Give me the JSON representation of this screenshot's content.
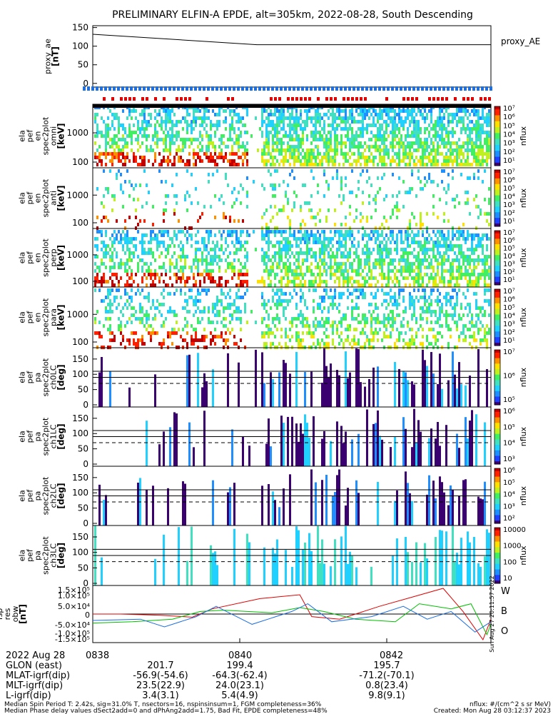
{
  "title": "PRELIMINARY ELFIN-A EPDE, alt=305km, 2022-08-28, South Descending",
  "colors": {
    "blue": "#1e6fe0",
    "red": "#e00000",
    "green": "#00c000"
  },
  "panels": {
    "proxy": {
      "ylabel": [
        "proxy_ae",
        "[nT]"
      ],
      "legend": "proxy_AE",
      "ticks": [
        "150",
        "100",
        "50",
        "0"
      ],
      "tick_values": [
        150,
        100,
        50,
        0
      ]
    },
    "spec": [
      {
        "ylabel": [
          "ela",
          "pef",
          "en",
          "spec2plot",
          "omni",
          "[keV]"
        ],
        "ticks": [
          "1000",
          "100"
        ],
        "cbar": [
          "10⁷",
          "10⁶",
          "10⁵",
          "10⁴",
          "10³",
          "10²",
          "10¹"
        ],
        "clabel": "nflux",
        "density": 0.55,
        "seed": 3
      },
      {
        "ylabel": [
          "ela",
          "pef",
          "en",
          "spec2plot",
          "anti",
          "[keV]"
        ],
        "ticks": [
          "1000",
          "100"
        ],
        "cbar": [
          "10⁷",
          "10⁶",
          "10⁵",
          "10⁴",
          "10³",
          "10²",
          "10¹"
        ],
        "clabel": "nflux",
        "density": 0.12,
        "seed": 11
      },
      {
        "ylabel": [
          "ela",
          "pef",
          "en",
          "spec2plot",
          "perp",
          "[keV]"
        ],
        "ticks": [
          "1000",
          "100"
        ],
        "cbar": [
          "10⁷",
          "10⁶",
          "10⁵",
          "10⁴",
          "10³",
          "10²",
          "10¹"
        ],
        "clabel": "nflux",
        "density": 0.5,
        "seed": 17
      },
      {
        "ylabel": [
          "ela",
          "pef",
          "en",
          "spec2plot",
          "para",
          "[keV]"
        ],
        "ticks": [
          "1000",
          "100"
        ],
        "cbar": [
          "10⁷",
          "10⁶",
          "10⁵",
          "10⁴",
          "10³",
          "10²",
          "10¹"
        ],
        "clabel": "nflux",
        "density": 0.35,
        "seed": 23
      }
    ],
    "pa": [
      {
        "ylabel": [
          "ela",
          "pef",
          "pa",
          "spec2plot",
          "ch0LC",
          "[deg]"
        ],
        "ticks": [
          "150",
          "100",
          "50",
          "0"
        ],
        "cbar": [
          "10⁷",
          "10⁶",
          "10⁵"
        ],
        "clabel": "nflux",
        "seed": 31
      },
      {
        "ylabel": [
          "ela",
          "pef",
          "pa",
          "spec2plot",
          "ch1LC",
          "[deg]"
        ],
        "ticks": [
          "150",
          "100",
          "50",
          "0"
        ],
        "cbar": [
          "10⁶",
          "10⁵",
          "10⁴",
          "10³"
        ],
        "clabel": "nflux",
        "seed": 37
      },
      {
        "ylabel": [
          "ela",
          "pef",
          "pa",
          "spec2plot",
          "ch2LC",
          "[deg]"
        ],
        "ticks": [
          "150",
          "100",
          "50",
          "0"
        ],
        "cbar": [
          "10⁶",
          "10⁵",
          "10⁴",
          "10³",
          "10²"
        ],
        "clabel": "nflux",
        "seed": 41
      },
      {
        "ylabel": [
          "ela",
          "pef",
          "pa",
          "spec2plot",
          "ch3LC",
          "[deg]"
        ],
        "ticks": [
          "150",
          "100",
          "50",
          "0"
        ],
        "cbar": [
          "10000",
          "1000",
          "100",
          "10"
        ],
        "clabel": "nflux",
        "seed": 47
      }
    ],
    "field": {
      "ylabel": [
        "ela",
        "fsp",
        "res",
        "obw",
        "[nT]"
      ],
      "ticks": [
        "1.5×10⁵",
        "1.0×10⁵",
        "5.0×10⁴",
        "0",
        "-5.0×10⁴",
        "-1.0×10⁵",
        "-1.5×10⁵"
      ],
      "legend": [
        "W",
        "B",
        "O"
      ],
      "side_text": "Sun Aug 27 20:11:57 2022"
    }
  },
  "time_axis": {
    "date": "2022 Aug 28",
    "times": [
      "0838",
      "0840",
      "0842"
    ],
    "rows": [
      {
        "label": "GLON (east)",
        "values": [
          "201.7",
          "199.4",
          "195.7"
        ]
      },
      {
        "label": "MLAT-igrf(dip)",
        "values": [
          "-56.9(-54.6)",
          "-64.3(-62.4)",
          "-71.2(-70.1)"
        ]
      },
      {
        "label": "MLT-igrf(dip)",
        "values": [
          "23.5(22.9)",
          "24.0(23.1)",
          "0.8(23.4)"
        ]
      },
      {
        "label": "L-igrf(dip)",
        "values": [
          "3.4(3.1)",
          "5.4(4.9)",
          "9.8(9.1)"
        ]
      }
    ]
  },
  "footer": {
    "line1_left": "Median Spin Period T: 2.42s, sig=31.0% T, nsectors=16, nspinsinsum=1, FGM completeness=36%",
    "line2_left": "Median Phase delay values dSect2add=0 and dPhAng2add=1.75, Bad Fit, EPDE completeness=48%",
    "line1_right": "nflux: #/(cm^2 s sr MeV)",
    "line2_right": "Created: Mon Aug 28 03:12:37 2023"
  },
  "chart_data": {
    "type": "heatmap",
    "title": "PRELIMINARY ELFIN-A EPDE, alt=305km, 2022-08-28, South Descending",
    "x_ticks": [
      "0838",
      "0840",
      "0842"
    ],
    "proxy_ae": {
      "x": [
        "start",
        "0840",
        "end"
      ],
      "values": [
        132,
        104,
        104
      ],
      "ylim": [
        -10,
        155
      ]
    },
    "field_series": [
      {
        "name": "W",
        "x": [
          0.0,
          0.07,
          0.17,
          0.25,
          0.3,
          0.42,
          0.52,
          0.55,
          0.62,
          0.72,
          0.8,
          0.88,
          0.93,
          0.98,
          1.0
        ],
        "values": [
          0.0,
          0.0,
          -0.05,
          -0.12,
          0.2,
          0.6,
          0.75,
          -0.1,
          -0.2,
          0.3,
          0.65,
          1.0,
          0.1,
          -1.0,
          -0.2
        ]
      },
      {
        "name": "B",
        "x": [
          0.0,
          0.1,
          0.2,
          0.27,
          0.33,
          0.45,
          0.52,
          0.58,
          0.66,
          0.76,
          0.82,
          0.9,
          0.95,
          0.99,
          1.0
        ],
        "values": [
          -0.35,
          -0.3,
          -0.2,
          0.1,
          0.15,
          0.05,
          0.25,
          0.1,
          -0.2,
          -0.3,
          0.4,
          0.2,
          0.4,
          -0.8,
          -0.4
        ]
      },
      {
        "name": "O",
        "x": [
          0.0,
          0.12,
          0.18,
          0.26,
          0.31,
          0.4,
          0.5,
          0.54,
          0.6,
          0.7,
          0.78,
          0.84,
          0.9,
          0.96,
          1.0
        ],
        "values": [
          -0.25,
          -0.2,
          -0.5,
          -0.1,
          0.3,
          -0.4,
          0.1,
          0.4,
          -0.3,
          -0.1,
          0.3,
          -0.2,
          0.1,
          -0.7,
          -0.3
        ]
      }
    ]
  }
}
